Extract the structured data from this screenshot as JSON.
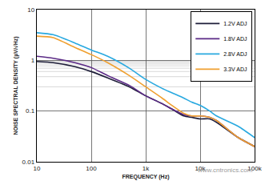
{
  "chart_data": {
    "type": "line",
    "x_label": "FREQUENCY (Hz)",
    "y_label": "NOISE SPECTRAL DENSITY (µV/√Hz)",
    "x": [
      10,
      20,
      50,
      100,
      200,
      500,
      1000,
      2000,
      3000,
      5000,
      7000,
      10000,
      15000,
      20000,
      50000,
      100000
    ],
    "series": [
      {
        "name": "1.2V ADJ",
        "color": "#1f1f3a",
        "values": [
          0.95,
          0.9,
          0.75,
          0.6,
          0.45,
          0.3,
          0.2,
          0.14,
          0.11,
          0.08,
          0.075,
          0.07,
          0.07,
          0.06,
          0.03,
          0.02
        ]
      },
      {
        "name": "1.8V ADJ",
        "color": "#5b2a86",
        "values": [
          1.2,
          1.1,
          0.9,
          0.72,
          0.5,
          0.32,
          0.2,
          0.14,
          0.11,
          0.085,
          0.08,
          0.08,
          0.075,
          0.065,
          0.03,
          0.02
        ]
      },
      {
        "name": "2.8V ADJ",
        "color": "#29a9e0",
        "values": [
          3.5,
          3.2,
          2.2,
          1.6,
          1.2,
          0.7,
          0.42,
          0.28,
          0.23,
          0.18,
          0.15,
          0.13,
          0.1,
          0.08,
          0.05,
          0.03
        ]
      },
      {
        "name": "3.3V ADJ",
        "color": "#f0a030",
        "values": [
          3.0,
          2.8,
          1.8,
          1.3,
          0.9,
          0.5,
          0.3,
          0.18,
          0.13,
          0.09,
          0.08,
          0.08,
          0.075,
          0.065,
          0.03,
          0.02
        ]
      }
    ],
    "xlim": [
      10,
      100000
    ],
    "ylim": [
      0.01,
      10
    ],
    "xticks": [
      10,
      100,
      {
        "value": 1000,
        "label": "1k"
      },
      {
        "value": 10000,
        "label": "10k"
      },
      {
        "value": 100000,
        "label": "100k"
      }
    ],
    "yticks": [
      0.01,
      0.1,
      1,
      10
    ],
    "log": true,
    "grid": true,
    "legend": "upper right",
    "annotation": "www.cntronics.com"
  }
}
